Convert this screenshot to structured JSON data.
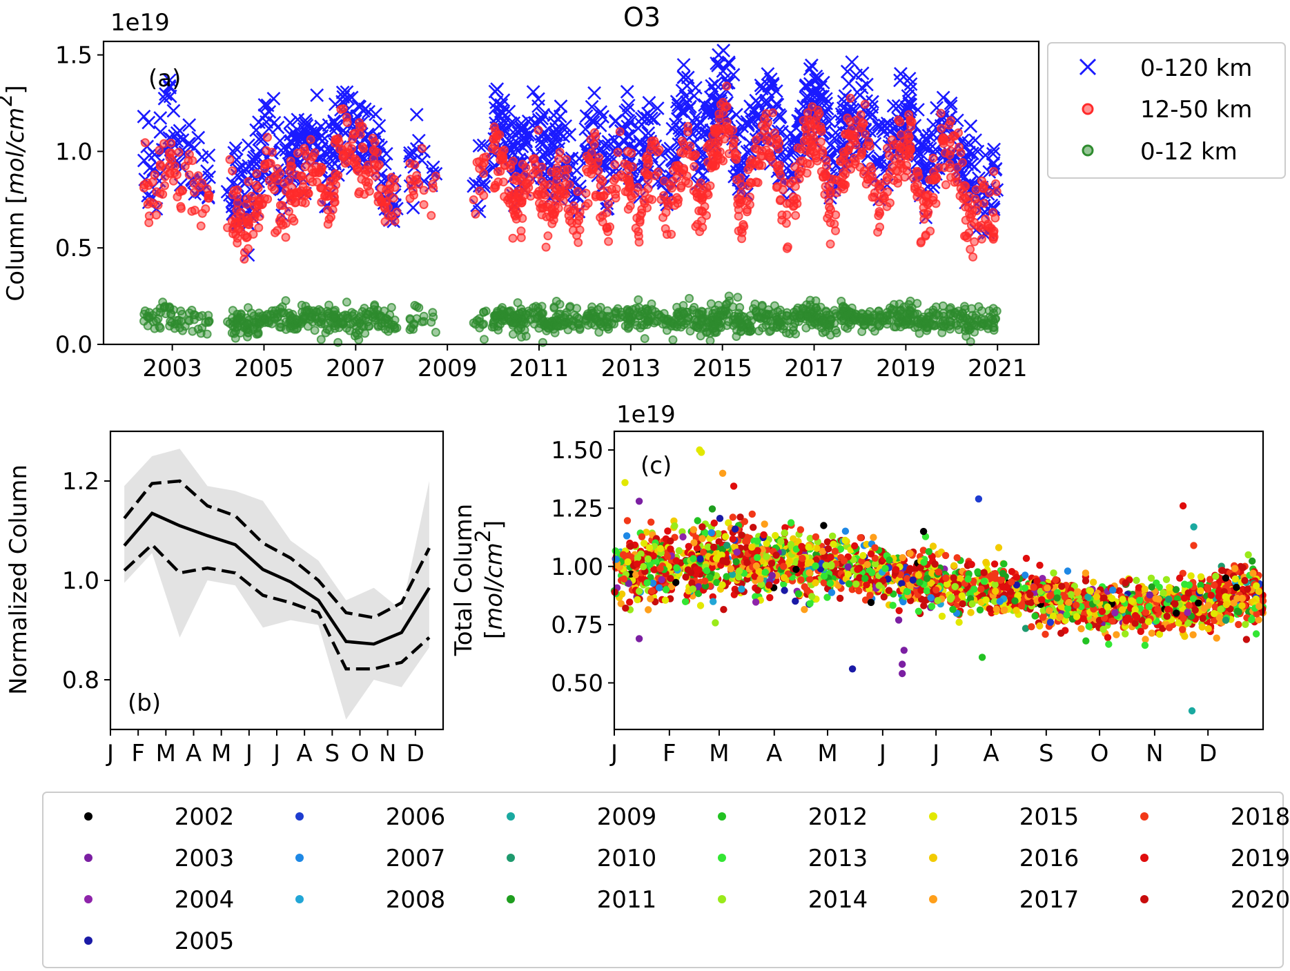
{
  "figure": {
    "title": "O3",
    "multiplier": "1e19"
  },
  "chart_data": [
    {
      "id": "a",
      "panel_label": "(a)",
      "type": "scatter",
      "ylabel_main": "Column [",
      "ylabel_unit": "mol/cm",
      "ylabel_sup": "2",
      "ylabel_close": "]",
      "multiplier": "1e19",
      "xlim": [
        2001.5,
        2021.9
      ],
      "ylim": [
        0.0,
        1.57
      ],
      "xticks": [
        2003,
        2005,
        2007,
        2009,
        2011,
        2013,
        2015,
        2017,
        2019,
        2021
      ],
      "xtick_labels": [
        "2003",
        "2005",
        "2007",
        "2009",
        "2011",
        "2013",
        "2015",
        "2017",
        "2019",
        "2021"
      ],
      "yticks": [
        0.0,
        0.5,
        1.0,
        1.5
      ],
      "ytick_labels": [
        "0.0",
        "0.5",
        "1.0",
        "1.5"
      ],
      "legend": {
        "position": "outside right",
        "entries": [
          {
            "label": "0-120 km",
            "marker": "x",
            "color": "#1a1aff"
          },
          {
            "label": "12-50 km",
            "marker": "circle",
            "color": "#ff2a2a"
          },
          {
            "label": "0-12 km",
            "marker": "circle",
            "color": "#2e8b2e"
          }
        ]
      },
      "series": [
        {
          "name": "0-120 km",
          "color": "#1a1aff",
          "marker": "x",
          "x": [
            2002.4,
            2002.6,
            2002.9,
            2003.1,
            2003.3,
            2003.6,
            2004.3,
            2004.6,
            2005.1,
            2005.4,
            2005.7,
            2006.1,
            2006.4,
            2006.7,
            2007.1,
            2007.4,
            2007.8,
            2008.3,
            2008.6,
            2009.7,
            2009.9,
            2010.2,
            2010.5,
            2010.9,
            2011.2,
            2011.5,
            2011.8,
            2012.2,
            2012.5,
            2012.8,
            2013.2,
            2013.5,
            2013.8,
            2014.2,
            2014.5,
            2014.8,
            2015.1,
            2015.4,
            2015.8,
            2016.1,
            2016.4,
            2016.8,
            2017.1,
            2017.4,
            2017.8,
            2018.1,
            2018.4,
            2018.8,
            2019.1,
            2019.4,
            2019.8,
            2020.1,
            2020.4,
            2020.8,
            2021.0
          ],
          "y": [
            1.15,
            0.98,
            1.27,
            1.05,
            1.12,
            0.95,
            0.96,
            0.88,
            1.21,
            0.97,
            1.12,
            1.18,
            1.0,
            1.28,
            1.22,
            1.15,
            0.82,
            1.1,
            1.05,
            0.98,
            1.15,
            1.3,
            1.02,
            1.25,
            1.05,
            1.2,
            0.95,
            1.25,
            0.98,
            1.28,
            1.05,
            1.28,
            1.0,
            1.43,
            1.1,
            1.32,
            1.5,
            1.05,
            1.3,
            1.35,
            1.0,
            1.32,
            1.4,
            1.05,
            1.35,
            1.3,
            1.05,
            1.28,
            1.33,
            1.0,
            1.25,
            1.2,
            0.98,
            0.95,
            0.92
          ]
        },
        {
          "name": "12-50 km",
          "color": "#ff2a2a",
          "marker": "circle",
          "x": [
            2002.4,
            2002.6,
            2002.9,
            2003.1,
            2003.3,
            2003.6,
            2004.3,
            2004.6,
            2005.1,
            2005.4,
            2005.7,
            2006.1,
            2006.4,
            2006.7,
            2007.1,
            2007.4,
            2007.8,
            2008.3,
            2008.6,
            2009.7,
            2009.9,
            2010.2,
            2010.5,
            2010.9,
            2011.2,
            2011.5,
            2011.8,
            2012.2,
            2012.5,
            2012.8,
            2013.2,
            2013.5,
            2013.8,
            2014.2,
            2014.5,
            2014.8,
            2015.1,
            2015.4,
            2015.8,
            2016.1,
            2016.4,
            2016.8,
            2017.1,
            2017.4,
            2017.8,
            2018.1,
            2018.4,
            2018.8,
            2019.1,
            2019.4,
            2019.8,
            2020.1,
            2020.4,
            2020.8,
            2021.0
          ],
          "y": [
            0.88,
            0.8,
            1.02,
            0.85,
            0.92,
            0.78,
            0.75,
            0.62,
            0.95,
            0.72,
            0.88,
            0.92,
            0.8,
            1.1,
            1.0,
            0.95,
            0.7,
            0.9,
            0.85,
            0.82,
            0.92,
            1.02,
            0.7,
            0.98,
            0.72,
            0.95,
            0.68,
            0.98,
            0.7,
            1.0,
            0.72,
            1.05,
            0.68,
            1.08,
            0.75,
            1.05,
            1.22,
            0.72,
            1.05,
            1.1,
            0.65,
            1.05,
            1.12,
            0.68,
            1.1,
            1.08,
            0.68,
            1.02,
            1.1,
            0.62,
            1.05,
            0.98,
            0.65,
            0.75,
            0.72
          ]
        },
        {
          "name": "0-12 km",
          "color": "#2e8b2e",
          "marker": "circle",
          "x": [
            2002.4,
            2002.6,
            2002.9,
            2003.1,
            2003.3,
            2003.6,
            2004.3,
            2004.6,
            2005.1,
            2005.4,
            2005.7,
            2006.1,
            2006.4,
            2006.7,
            2007.1,
            2007.4,
            2007.8,
            2008.3,
            2008.6,
            2009.7,
            2009.9,
            2010.2,
            2010.5,
            2010.9,
            2011.2,
            2011.5,
            2011.8,
            2012.2,
            2012.5,
            2012.8,
            2013.2,
            2013.5,
            2013.8,
            2014.2,
            2014.5,
            2014.8,
            2015.1,
            2015.4,
            2015.8,
            2016.1,
            2016.4,
            2016.8,
            2017.1,
            2017.4,
            2017.8,
            2018.1,
            2018.4,
            2018.8,
            2019.1,
            2019.4,
            2019.8,
            2020.1,
            2020.4,
            2020.8,
            2021.0
          ],
          "y": [
            0.13,
            0.12,
            0.18,
            0.1,
            0.14,
            0.12,
            0.12,
            0.1,
            0.13,
            0.15,
            0.11,
            0.14,
            0.12,
            0.13,
            0.1,
            0.15,
            0.11,
            0.13,
            0.12,
            0.12,
            0.1,
            0.15,
            0.12,
            0.14,
            0.11,
            0.15,
            0.12,
            0.14,
            0.11,
            0.16,
            0.12,
            0.14,
            0.11,
            0.15,
            0.13,
            0.12,
            0.16,
            0.11,
            0.14,
            0.13,
            0.12,
            0.15,
            0.14,
            0.12,
            0.16,
            0.13,
            0.12,
            0.14,
            0.15,
            0.12,
            0.14,
            0.13,
            0.11,
            0.12,
            0.12
          ]
        }
      ]
    },
    {
      "id": "b",
      "panel_label": "(b)",
      "type": "line",
      "ylabel": "Normalized Column",
      "xlim": [
        0,
        12
      ],
      "ylim": [
        0.7,
        1.3
      ],
      "categories": [
        "J",
        "F",
        "M",
        "A",
        "M",
        "J",
        "J",
        "A",
        "S",
        "O",
        "N",
        "D"
      ],
      "yticks": [
        0.8,
        1.0,
        1.2
      ],
      "ytick_labels": [
        "0.8",
        "1.0",
        "1.2"
      ],
      "x": [
        0.5,
        1.5,
        2.5,
        3.5,
        4.5,
        5.5,
        6.5,
        7.5,
        8.5,
        9.5,
        10.5,
        11.5
      ],
      "series": [
        {
          "name": "mean",
          "style": "solid",
          "color": "#000000",
          "values": [
            1.07,
            1.135,
            1.11,
            1.09,
            1.072,
            1.022,
            0.997,
            0.96,
            0.877,
            0.872,
            0.895,
            0.985
          ]
        },
        {
          "name": "upper",
          "style": "dashed",
          "color": "#000000",
          "values": [
            1.125,
            1.195,
            1.2,
            1.15,
            1.13,
            1.075,
            1.045,
            1.0,
            0.935,
            0.925,
            0.955,
            1.065
          ]
        },
        {
          "name": "lower",
          "style": "dashed",
          "color": "#000000",
          "values": [
            1.02,
            1.072,
            1.015,
            1.025,
            1.015,
            0.97,
            0.955,
            0.935,
            0.822,
            0.822,
            0.835,
            0.885
          ]
        },
        {
          "name": "range",
          "style": "fill",
          "color": "#e3e3e3",
          "upper": [
            1.19,
            1.25,
            1.265,
            1.19,
            1.18,
            1.16,
            1.08,
            1.04,
            0.96,
            0.985,
            0.94,
            1.2
          ],
          "lower": [
            0.995,
            1.055,
            0.885,
            1.0,
            0.99,
            0.905,
            0.92,
            0.91,
            0.72,
            0.8,
            0.785,
            0.865
          ]
        }
      ]
    },
    {
      "id": "c",
      "panel_label": "(c)",
      "type": "scatter",
      "ylabel_line1": "Total Column",
      "ylabel_open": "[",
      "ylabel_unit": "mol/cm",
      "ylabel_sup": "2",
      "ylabel_close": "]",
      "multiplier": "1e19",
      "xlim": [
        0,
        365
      ],
      "ylim": [
        0.3,
        1.58
      ],
      "xticks": [
        0,
        31,
        59,
        90,
        120,
        151,
        181,
        212,
        243,
        273,
        304,
        334
      ],
      "xtick_labels": [
        "J",
        "F",
        "M",
        "A",
        "M",
        "J",
        "J",
        "A",
        "S",
        "O",
        "N",
        "D"
      ],
      "yticks": [
        0.5,
        0.75,
        1.0,
        1.25,
        1.5
      ],
      "ytick_labels": [
        "0.50",
        "0.75",
        "1.00",
        "1.25",
        "1.50"
      ],
      "trend": {
        "doy": [
          0,
          30,
          60,
          90,
          120,
          150,
          180,
          210,
          240,
          270,
          300,
          330,
          365
        ],
        "value": [
          0.98,
          1.01,
          1.04,
          1.02,
          1.0,
          0.97,
          0.93,
          0.9,
          0.87,
          0.83,
          0.82,
          0.84,
          0.88
        ],
        "spread": [
          0.1,
          0.11,
          0.12,
          0.1,
          0.09,
          0.08,
          0.08,
          0.07,
          0.07,
          0.07,
          0.07,
          0.08,
          0.09
        ]
      },
      "outliers": [
        {
          "doy": 6,
          "value": 1.36,
          "year": "2015"
        },
        {
          "doy": 14,
          "value": 0.69,
          "year": "2003"
        },
        {
          "doy": 14,
          "value": 1.28,
          "year": "2003"
        },
        {
          "doy": 48,
          "value": 1.5,
          "year": "2015"
        },
        {
          "doy": 49,
          "value": 1.49,
          "year": "2015"
        },
        {
          "doy": 61,
          "value": 1.4,
          "year": "2017"
        },
        {
          "doy": 134,
          "value": 0.56,
          "year": "2005"
        },
        {
          "doy": 162,
          "value": 0.54,
          "year": "2003"
        },
        {
          "doy": 162,
          "value": 0.58,
          "year": "2003"
        },
        {
          "doy": 163,
          "value": 0.64,
          "year": "2003"
        },
        {
          "doy": 160,
          "value": 0.77,
          "year": "2003"
        },
        {
          "doy": 174,
          "value": 1.15,
          "year": "2002"
        },
        {
          "doy": 205,
          "value": 1.29,
          "year": "2006"
        },
        {
          "doy": 207,
          "value": 0.61,
          "year": "2012"
        },
        {
          "doy": 320,
          "value": 1.26,
          "year": "2019"
        },
        {
          "doy": 326,
          "value": 1.17,
          "year": "2009"
        },
        {
          "doy": 325,
          "value": 0.38,
          "year": "2009"
        },
        {
          "doy": 344,
          "value": 0.95,
          "year": "2002"
        },
        {
          "doy": 350,
          "value": 0.91,
          "year": "2002"
        }
      ],
      "legend": {
        "position": "bottom",
        "entries": [
          {
            "label": "2002",
            "color": "#000000"
          },
          {
            "label": "2003",
            "color": "#7b1fa2"
          },
          {
            "label": "2004",
            "color": "#8e24aa"
          },
          {
            "label": "2005",
            "color": "#1a1aa6"
          },
          {
            "label": "2006",
            "color": "#1e3cd0"
          },
          {
            "label": "2007",
            "color": "#1e88e5"
          },
          {
            "label": "2008",
            "color": "#22a6d6"
          },
          {
            "label": "2009",
            "color": "#1aa9a0"
          },
          {
            "label": "2010",
            "color": "#1e9a6e"
          },
          {
            "label": "2011",
            "color": "#1f9e1f"
          },
          {
            "label": "2012",
            "color": "#22c222"
          },
          {
            "label": "2013",
            "color": "#33e633"
          },
          {
            "label": "2014",
            "color": "#9aea1a"
          },
          {
            "label": "2015",
            "color": "#e2e800"
          },
          {
            "label": "2016",
            "color": "#f2cb00"
          },
          {
            "label": "2017",
            "color": "#ff9f1a"
          },
          {
            "label": "2018",
            "color": "#f23818"
          },
          {
            "label": "2019",
            "color": "#e00d0d"
          },
          {
            "label": "2020",
            "color": "#c80c0c"
          }
        ]
      }
    }
  ]
}
